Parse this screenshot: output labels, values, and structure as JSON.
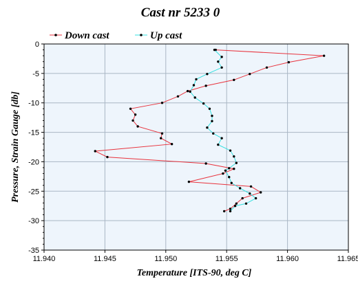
{
  "chart_data": {
    "type": "line",
    "title": "Cast nr 5233 0",
    "xlabel": "Temperature [ITS-90, deg C]",
    "ylabel": "Pressure, Strain Gauge [db]",
    "xlim": [
      11.94,
      11.965
    ],
    "ylim": [
      -35,
      0
    ],
    "x_ticks": [
      "11.940",
      "11.945",
      "11.950",
      "11.955",
      "11.960",
      "11.965"
    ],
    "y_ticks": [
      "0",
      "-5",
      "-10",
      "-15",
      "-20",
      "-25",
      "-30",
      "-35"
    ],
    "grid": true,
    "legend_position": "top-left",
    "series": [
      {
        "name": "Down cast",
        "color": "#e8323c",
        "points": [
          [
            11.9541,
            -1.0
          ],
          [
            11.963,
            -2.0
          ],
          [
            11.9601,
            -3.1
          ],
          [
            11.9583,
            -4.0
          ],
          [
            11.9569,
            -5.1
          ],
          [
            11.9556,
            -6.1
          ],
          [
            11.9533,
            -7.1
          ],
          [
            11.9518,
            -8.0
          ],
          [
            11.951,
            -8.9
          ],
          [
            11.9497,
            -10.0
          ],
          [
            11.9471,
            -11.0
          ],
          [
            11.9475,
            -12.0
          ],
          [
            11.9473,
            -13.0
          ],
          [
            11.9477,
            -14.0
          ],
          [
            11.9497,
            -15.2
          ],
          [
            11.9496,
            -16.0
          ],
          [
            11.9505,
            -17.0
          ],
          [
            11.9442,
            -18.2
          ],
          [
            11.9452,
            -19.2
          ],
          [
            11.9533,
            -20.3
          ],
          [
            11.9556,
            -21.2
          ],
          [
            11.9547,
            -22.0
          ],
          [
            11.9519,
            -23.4
          ],
          [
            11.957,
            -24.2
          ],
          [
            11.9578,
            -25.2
          ],
          [
            11.9563,
            -26.2
          ],
          [
            11.9558,
            -27.1
          ],
          [
            11.9553,
            -28.0
          ],
          [
            11.9548,
            -28.4
          ]
        ]
      },
      {
        "name": "Up cast",
        "color": "#33e0e0",
        "points": [
          [
            11.954,
            -1.0
          ],
          [
            11.9546,
            -2.2
          ],
          [
            11.9543,
            -3.0
          ],
          [
            11.9546,
            -4.0
          ],
          [
            11.9534,
            -5.1
          ],
          [
            11.9525,
            -6.0
          ],
          [
            11.9523,
            -7.0
          ],
          [
            11.952,
            -8.1
          ],
          [
            11.9524,
            -9.1
          ],
          [
            11.9531,
            -10.1
          ],
          [
            11.9536,
            -11.0
          ],
          [
            11.9538,
            -12.2
          ],
          [
            11.9538,
            -13.1
          ],
          [
            11.9534,
            -14.2
          ],
          [
            11.9539,
            -15.2
          ],
          [
            11.9546,
            -16.0
          ],
          [
            11.9543,
            -17.1
          ],
          [
            11.9553,
            -18.1
          ],
          [
            11.9556,
            -19.1
          ],
          [
            11.9558,
            -20.2
          ],
          [
            11.9552,
            -21.1
          ],
          [
            11.9549,
            -21.5
          ],
          [
            11.9552,
            -22.6
          ],
          [
            11.9554,
            -23.6
          ],
          [
            11.9561,
            -24.5
          ],
          [
            11.9569,
            -25.4
          ],
          [
            11.9574,
            -26.2
          ],
          [
            11.9566,
            -27.1
          ],
          [
            11.9557,
            -27.5
          ],
          [
            11.9553,
            -28.4
          ]
        ]
      }
    ]
  }
}
